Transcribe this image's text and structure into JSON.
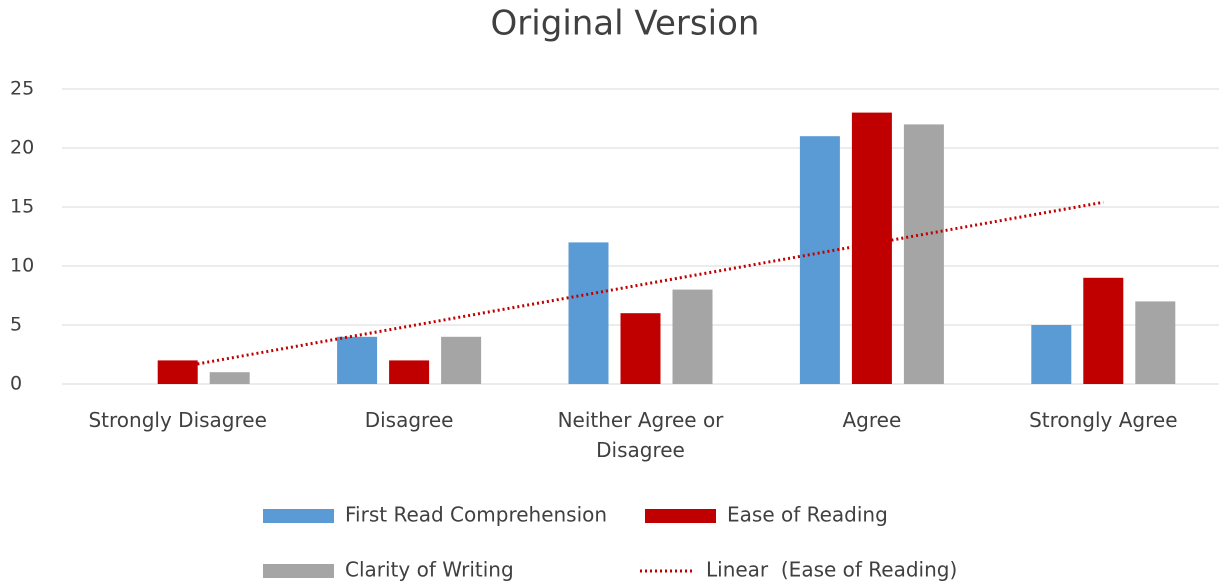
{
  "chart_data": {
    "type": "bar",
    "title": "Original Version",
    "categories": [
      "Strongly Disagree",
      "Disagree",
      "Neither Agree or Disagree",
      "Agree",
      "Strongly Agree"
    ],
    "series": [
      {
        "name": "First Read Comprehension",
        "color": "#5b9bd5",
        "values": [
          0,
          4,
          12,
          21,
          5
        ]
      },
      {
        "name": "Ease of Reading",
        "color": "#c00000",
        "values": [
          2,
          2,
          6,
          23,
          9
        ]
      },
      {
        "name": "Clarity of Writing",
        "color": "#a5a5a5",
        "values": [
          1,
          4,
          8,
          22,
          7
        ]
      },
      {
        "name": "Linear  (Ease of Reading)",
        "color": "#c00000",
        "type": "trendline",
        "values": [
          1.4,
          4.9,
          8.4,
          11.9,
          15.4
        ]
      }
    ],
    "ylim": [
      0,
      25
    ],
    "yticks": [
      0,
      5,
      10,
      15,
      20,
      25
    ],
    "grid": true,
    "legend": "bottom"
  }
}
